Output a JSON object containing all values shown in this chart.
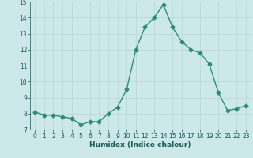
{
  "x": [
    0,
    1,
    2,
    3,
    4,
    5,
    6,
    7,
    8,
    9,
    10,
    11,
    12,
    13,
    14,
    15,
    16,
    17,
    18,
    19,
    20,
    21,
    22,
    23
  ],
  "y": [
    8.1,
    7.9,
    7.9,
    7.8,
    7.7,
    7.3,
    7.5,
    7.5,
    8.0,
    8.4,
    9.5,
    12.0,
    13.4,
    14.0,
    14.8,
    13.4,
    12.5,
    12.0,
    11.8,
    11.1,
    9.3,
    8.2,
    8.3,
    8.5
  ],
  "line_color": "#2e8b7a",
  "bg_color": "#cce8e8",
  "grid_color": "#b8d4d4",
  "xlabel": "Humidex (Indice chaleur)",
  "ylim": [
    7,
    15
  ],
  "xlim": [
    -0.5,
    23.5
  ],
  "yticks": [
    7,
    8,
    9,
    10,
    11,
    12,
    13,
    14,
    15
  ],
  "xticks": [
    0,
    1,
    2,
    3,
    4,
    5,
    6,
    7,
    8,
    9,
    10,
    11,
    12,
    13,
    14,
    15,
    16,
    17,
    18,
    19,
    20,
    21,
    22,
    23
  ],
  "marker_size": 2.5,
  "line_width": 1.0,
  "font_color": "#1a5a5a",
  "font_size": 5.5,
  "label_font_size": 6.5
}
